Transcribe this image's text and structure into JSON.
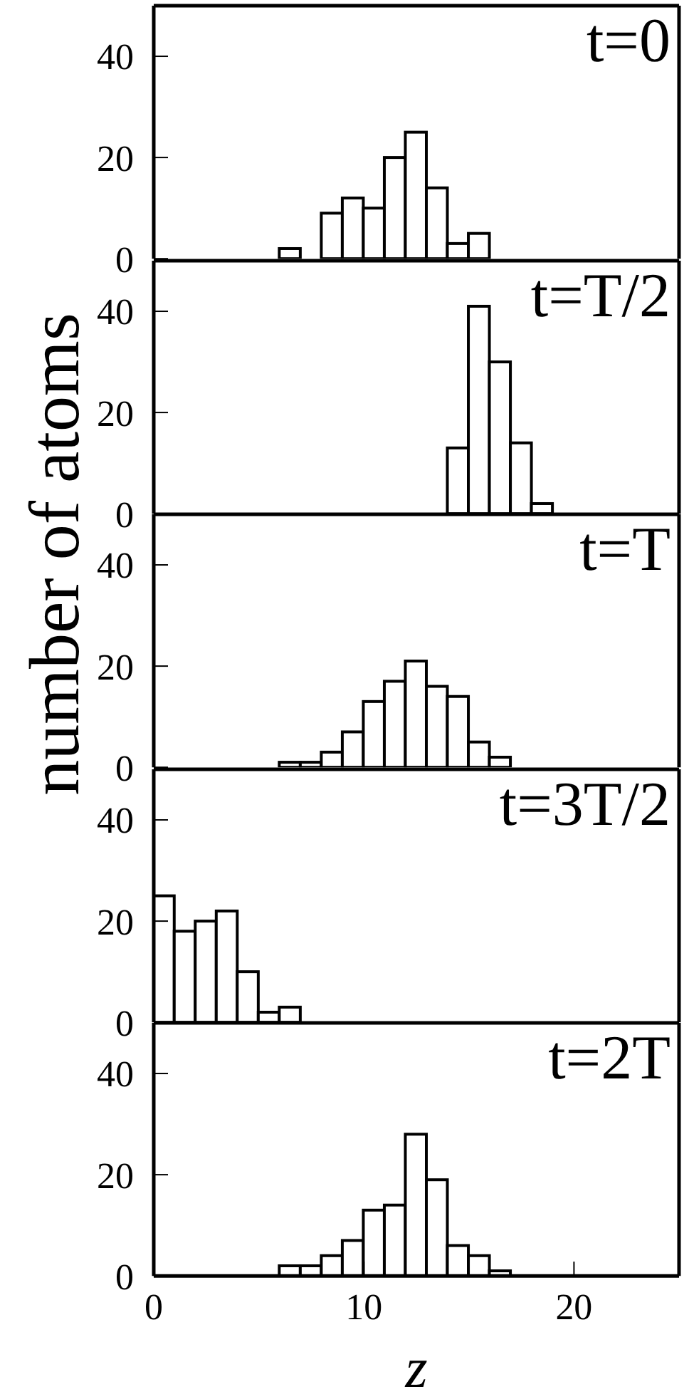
{
  "chart_data": [
    {
      "type": "histogram",
      "bins": [
        6,
        7,
        8,
        9,
        10,
        11,
        12,
        13,
        14,
        15,
        16
      ],
      "values": [
        2,
        0,
        9,
        12,
        10,
        20,
        25,
        14,
        3,
        5
      ],
      "color": "#ffffff",
      "xlim": [
        0,
        25
      ],
      "xticks": [
        0,
        10,
        20
      ],
      "ylim": [
        0,
        50
      ],
      "yticks": [
        0,
        20,
        40
      ],
      "tick_labels": "y",
      "annotations": [
        "t=0"
      ]
    },
    {
      "type": "histogram",
      "bins": [
        14,
        15,
        16,
        17,
        18,
        19
      ],
      "values": [
        13,
        41,
        30,
        14,
        2
      ],
      "color": "#ffffff",
      "xlim": [
        0,
        25
      ],
      "xticks": [
        0,
        10,
        20
      ],
      "ylim": [
        0,
        50
      ],
      "yticks": [
        0,
        20,
        40
      ],
      "tick_labels": "y",
      "annotations": [
        "t=T/2"
      ]
    },
    {
      "type": "histogram",
      "bins": [
        6,
        7,
        8,
        9,
        10,
        11,
        12,
        13,
        14,
        15,
        16,
        17
      ],
      "values": [
        1,
        1,
        3,
        7,
        13,
        17,
        21,
        16,
        14,
        5,
        2
      ],
      "color": "#ffffff",
      "xlim": [
        0,
        25
      ],
      "xticks": [
        0,
        10,
        20
      ],
      "ylim": [
        0,
        50
      ],
      "yticks": [
        0,
        20,
        40
      ],
      "tick_labels": "y",
      "ylabel": "number of atoms",
      "annotations": [
        "t=T"
      ]
    },
    {
      "type": "histogram",
      "bins": [
        0,
        1,
        2,
        3,
        4,
        5,
        6,
        7
      ],
      "values": [
        25,
        18,
        20,
        22,
        10,
        2,
        3
      ],
      "color": "#ffffff",
      "xlim": [
        0,
        25
      ],
      "xticks": [
        0,
        10,
        20
      ],
      "ylim": [
        0,
        50
      ],
      "yticks": [
        0,
        20,
        40
      ],
      "tick_labels": "y",
      "annotations": [
        "t=3T/2"
      ]
    },
    {
      "type": "histogram",
      "bins": [
        6,
        7,
        8,
        9,
        10,
        11,
        12,
        13,
        14,
        15,
        16,
        17
      ],
      "values": [
        2,
        2,
        4,
        7,
        13,
        14,
        28,
        19,
        6,
        4,
        1
      ],
      "color": "#ffffff",
      "xlim": [
        0,
        25
      ],
      "xticks": [
        0,
        10,
        20
      ],
      "ylim": [
        0,
        50
      ],
      "yticks": [
        0,
        20,
        40
      ],
      "xlabel": "z",
      "annotations": [
        "t=2T"
      ]
    }
  ]
}
